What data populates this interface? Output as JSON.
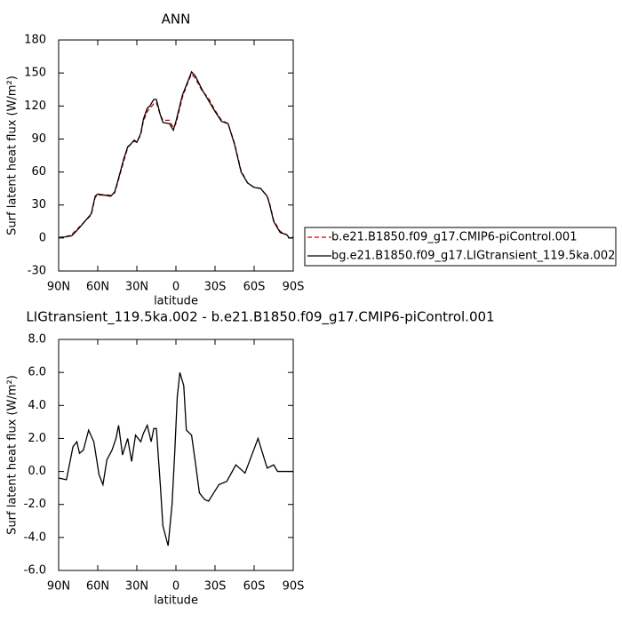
{
  "chart_data": [
    {
      "type": "line",
      "title": "ANN",
      "xlabel": "latitude",
      "ylabel": "Surf latent heat flux (W/m²)",
      "x": [
        90,
        85,
        80,
        75,
        70,
        65,
        62,
        60,
        55,
        50,
        47,
        45,
        40,
        37,
        35,
        32,
        30,
        27,
        25,
        22,
        20,
        17,
        15,
        12,
        10,
        5,
        2,
        0,
        -5,
        -10,
        -12,
        -15,
        -20,
        -25,
        -30,
        -35,
        -40,
        -45,
        -50,
        -55,
        -60,
        -65,
        -70,
        -72,
        -75,
        -80,
        -85,
        -87,
        -90
      ],
      "series": [
        {
          "name": "b.e21.B1850.f09_g17.CMIP6-piControl.001",
          "color": "#cc0000",
          "linestyle": "dashed",
          "values": [
            0.5,
            1,
            3,
            9,
            15,
            21,
            37,
            39,
            39,
            39,
            41,
            49,
            70,
            82,
            85,
            88,
            87,
            94,
            106,
            115,
            118,
            122,
            123,
            112,
            107,
            107,
            100,
            104,
            128,
            144,
            149,
            145,
            134,
            127,
            116,
            107,
            104,
            86,
            61,
            50,
            46,
            45,
            38,
            31,
            16,
            6,
            3,
            0,
            0.5
          ]
        },
        {
          "name": "bg.e21.B1850.f09_g17.LIGtransient_119.5ka.002",
          "color": "#000000",
          "linestyle": "solid",
          "values": [
            0.5,
            1,
            2,
            8,
            15,
            22,
            38,
            40,
            39,
            38,
            42,
            50,
            72,
            83,
            85,
            89,
            87,
            95,
            108,
            118,
            120,
            126,
            126,
            112,
            105,
            104,
            98,
            106,
            130,
            145,
            151,
            147,
            135,
            125,
            115,
            106,
            104,
            85,
            60,
            50,
            46,
            45,
            38,
            30,
            15,
            5,
            3,
            0,
            0.5
          ]
        }
      ],
      "xlim": [
        90,
        -90
      ],
      "xticks": [
        {
          "value": 90,
          "label": "90N"
        },
        {
          "value": 60,
          "label": "60N"
        },
        {
          "value": 30,
          "label": "30N"
        },
        0,
        {
          "value": -30,
          "label": "30S"
        },
        {
          "value": -60,
          "label": "60S"
        },
        {
          "value": -90,
          "label": "90S"
        }
      ],
      "ylim": [
        -30,
        180
      ],
      "yticks": [
        -30,
        0,
        30,
        60,
        90,
        120,
        150,
        180
      ],
      "legend": "right"
    },
    {
      "type": "line",
      "title": "LIGtransient_119.5ka.002 - b.e21.B1850.f09_g17.CMIP6-piControl.001",
      "xlabel": "latitude",
      "ylabel": "Surf latent heat flux (W/m²)",
      "x": [
        90,
        84,
        79,
        76,
        74,
        71,
        67,
        63,
        59,
        56,
        53,
        49,
        46,
        44,
        41,
        37,
        34,
        31,
        27,
        25,
        22,
        19,
        17,
        15,
        12,
        10,
        6,
        3,
        1,
        -1,
        -3,
        -6,
        -8,
        -12,
        -15,
        -18,
        -22,
        -25,
        -29,
        -33,
        -39,
        -46,
        -53,
        -63,
        -70,
        -75,
        -78,
        -90
      ],
      "series": [
        {
          "color": "#000000",
          "linestyle": "solid",
          "values": [
            -0.4,
            -0.5,
            1.5,
            1.8,
            1.1,
            1.3,
            2.5,
            1.8,
            -0.2,
            -0.8,
            0.7,
            1.3,
            2.0,
            2.8,
            1.0,
            2.0,
            0.6,
            2.2,
            1.8,
            2.3,
            2.8,
            1.8,
            2.6,
            2.6,
            -0.8,
            -3.3,
            -4.5,
            -2.0,
            1.0,
            4.5,
            6.0,
            5.2,
            2.5,
            2.2,
            0.5,
            -1.3,
            -1.7,
            -1.8,
            -1.3,
            -0.8,
            -0.6,
            0.4,
            -0.1,
            2.0,
            0.2,
            0.4,
            0.0,
            0.0
          ]
        }
      ],
      "xlim": [
        90,
        -90
      ],
      "xticks": [
        {
          "value": 90,
          "label": "90N"
        },
        {
          "value": 60,
          "label": "60N"
        },
        {
          "value": 30,
          "label": "30N"
        },
        0,
        {
          "value": -30,
          "label": "30S"
        },
        {
          "value": -60,
          "label": "60S"
        },
        {
          "value": -90,
          "label": "90S"
        }
      ],
      "ylim": [
        -6,
        8
      ],
      "yticks": [
        {
          "value": -6,
          "label": "-6.0"
        },
        {
          "value": -4,
          "label": "-4.0"
        },
        {
          "value": -2,
          "label": "-2.0"
        },
        {
          "value": 0,
          "label": "0.0"
        },
        {
          "value": 2,
          "label": "2.0"
        },
        {
          "value": 4,
          "label": "4.0"
        },
        {
          "value": 6,
          "label": "6.0"
        },
        {
          "value": 8,
          "label": "8.0"
        }
      ]
    }
  ]
}
